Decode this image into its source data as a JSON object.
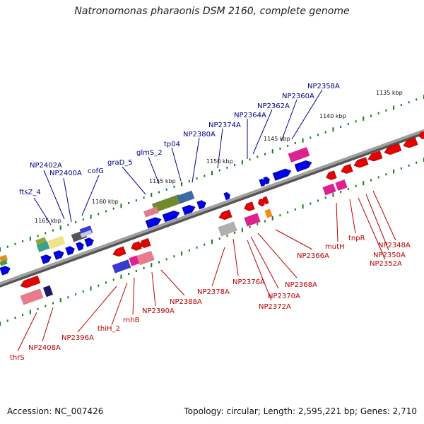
{
  "title": "Natronomonas pharaonis DSM 2160, complete genome",
  "footer": {
    "accession": "Accession: NC_007426",
    "stats": "Topology: circular; Length: 2,595,221 bp; Genes: 2,710"
  },
  "colors": {
    "backbone": "#8c8c8c",
    "forward_gene": "#0000e6",
    "reverse_gene": "#e60000",
    "forward_label": "#00008b",
    "reverse_label": "#c00000",
    "tick": "#1a7a1a"
  },
  "scale_labels": [
    "1135 kbp",
    "1140 kbp",
    "1145 kbp",
    "1150 kbp",
    "1155 kbp",
    "1160 kbp",
    "1165 kbp"
  ],
  "forward_labels": [
    "NP2358A",
    "NP2360A",
    "NP2362A",
    "NP2364A",
    "NP2374A",
    "NP2380A",
    "tp04",
    "glmS_2",
    "graD_5",
    "cofG",
    "NP2400A",
    "NP2402A",
    "ftsZ_4"
  ],
  "reverse_labels": [
    "NP2348A",
    "NP2350A",
    "NP2352A",
    "tnpR",
    "mutH",
    "NP2366A",
    "NP2368A",
    "NP2370A",
    "NP2372A",
    "NP2376A",
    "NP2378A",
    "NP2388A",
    "NP2390A",
    "rnhB",
    "thiH_2",
    "NP2396A",
    "NP2408A",
    "thrS"
  ]
}
